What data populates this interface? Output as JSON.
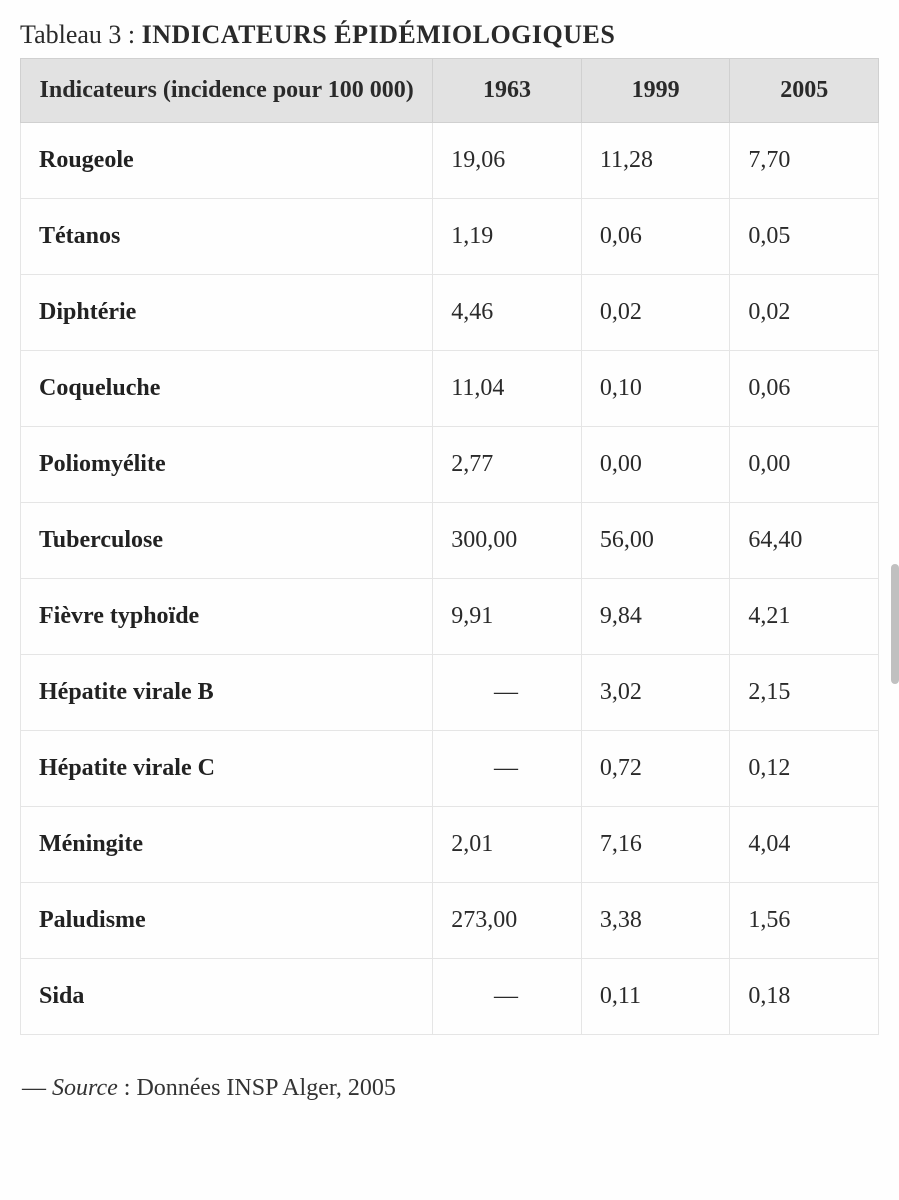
{
  "caption": {
    "label": "Tableau 3",
    "separator": " : ",
    "title": "Indicateurs épidémiologiques"
  },
  "table": {
    "columns": [
      "Indicateurs (incidence pour 100 000)",
      "1963",
      "1999",
      "2005"
    ],
    "rows": [
      {
        "name": "Rougeole",
        "values": [
          "19,06",
          "11,28",
          "7,70"
        ]
      },
      {
        "name": "Tétanos",
        "values": [
          "1,19",
          "0,06",
          "0,05"
        ]
      },
      {
        "name": "Diphtérie",
        "values": [
          "4,46",
          "0,02",
          "0,02"
        ]
      },
      {
        "name": "Coqueluche",
        "values": [
          "11,04",
          "0,10",
          "0,06"
        ]
      },
      {
        "name": "Poliomyélite",
        "values": [
          "2,77",
          "0,00",
          "0,00"
        ]
      },
      {
        "name": "Tuberculose",
        "values": [
          "300,00",
          "56,00",
          "64,40"
        ]
      },
      {
        "name": "Fièvre typhoïde",
        "values": [
          "9,91",
          "9,84",
          "4,21"
        ]
      },
      {
        "name": "Hépatite virale B",
        "values": [
          "—",
          "3,02",
          "2,15"
        ]
      },
      {
        "name": "Hépatite virale C",
        "values": [
          "—",
          "0,72",
          "0,12"
        ]
      },
      {
        "name": "Méningite",
        "values": [
          "2,01",
          "7,16",
          "4,04"
        ]
      },
      {
        "name": "Paludisme",
        "values": [
          "273,00",
          "3,38",
          "1,56"
        ]
      },
      {
        "name": "Sida",
        "values": [
          "—",
          "0,11",
          "0,18"
        ]
      }
    ],
    "header_bg": "#e2e2e2",
    "border_color": "#e5e5e5",
    "header_border_color": "#d0d0d0",
    "font_family": "Georgia, serif",
    "header_fontsize": 24,
    "cell_fontsize": 24
  },
  "source": {
    "dash": "— ",
    "label": "Source",
    "separator": " : ",
    "text": "Données INSP Alger, 2005"
  }
}
